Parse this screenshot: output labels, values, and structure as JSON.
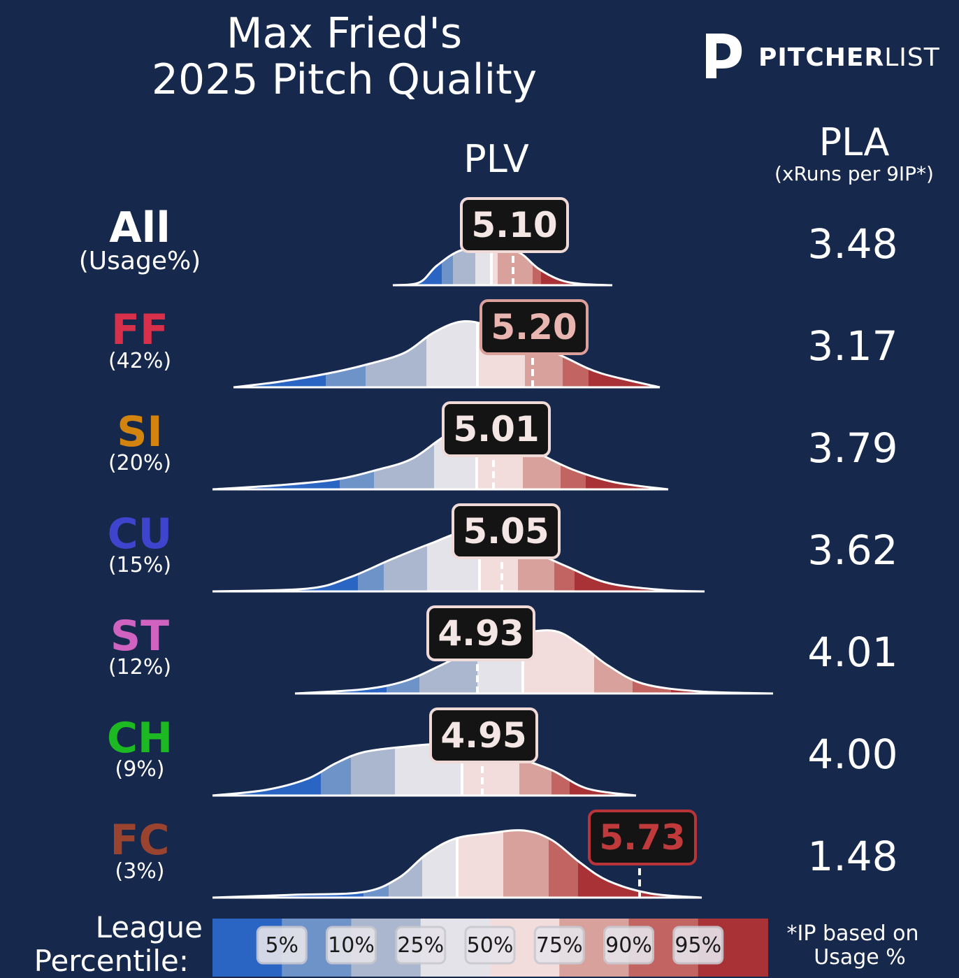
{
  "header": {
    "title_line1": "Max Fried's",
    "title_line2": "2025 Pitch Quality",
    "logo_bold": "PITCHER",
    "logo_thin": "LIST",
    "plv_header": "PLV",
    "pla_header": "PLA",
    "pla_subheader": "(xRuns per 9IP*)"
  },
  "colors": {
    "background": "#17284d",
    "percentile_bands": [
      "#2a65c4",
      "#6d93c8",
      "#aab7ce",
      "#e3e3e9",
      "#f2dcdc",
      "#d9a19c",
      "#c26462",
      "#a83236"
    ]
  },
  "rows": [
    {
      "pitch": "All",
      "usage": "(Usage%)",
      "plv": "5.10",
      "pla": "3.48",
      "color": "#ffffff",
      "label_style": "neutral"
    },
    {
      "pitch": "FF",
      "usage": "(42%)",
      "plv": "5.20",
      "pla": "3.17",
      "color": "#d8304b",
      "label_style": "pink"
    },
    {
      "pitch": "SI",
      "usage": "(20%)",
      "plv": "5.01",
      "pla": "3.79",
      "color": "#d2840f",
      "label_style": "neutral"
    },
    {
      "pitch": "CU",
      "usage": "(15%)",
      "plv": "5.05",
      "pla": "3.62",
      "color": "#3f44cf",
      "label_style": "neutral"
    },
    {
      "pitch": "ST",
      "usage": "(12%)",
      "plv": "4.93",
      "pla": "4.01",
      "color": "#d063c0",
      "label_style": "neutral"
    },
    {
      "pitch": "CH",
      "usage": "(9%)",
      "plv": "4.95",
      "pla": "4.00",
      "color": "#1cb922",
      "label_style": "neutral"
    },
    {
      "pitch": "FC",
      "usage": "(3%)",
      "plv": "5.73",
      "pla": "1.48",
      "color": "#9a4430",
      "label_style": "red"
    }
  ],
  "legend": {
    "label_line1": "League",
    "label_line2": "Percentile:",
    "percentiles": [
      "5%",
      "10%",
      "25%",
      "50%",
      "75%",
      "90%",
      "95%"
    ]
  },
  "footnote": {
    "line1": "*IP based on",
    "line2": "Usage %"
  },
  "chart_data": {
    "type": "density",
    "x_label": "PLV",
    "series": [
      {
        "name": "All",
        "plv": 5.1,
        "pla": 3.48
      },
      {
        "name": "FF",
        "plv": 5.2,
        "pla": 3.17
      },
      {
        "name": "SI",
        "plv": 5.01,
        "pla": 3.79
      },
      {
        "name": "CU",
        "plv": 5.05,
        "pla": 3.62
      },
      {
        "name": "ST",
        "plv": 4.93,
        "pla": 4.01
      },
      {
        "name": "CH",
        "plv": 4.95,
        "pla": 4.0
      },
      {
        "name": "FC",
        "plv": 5.73,
        "pla": 1.48
      }
    ],
    "percentile_levels": [
      5,
      10,
      25,
      50,
      75,
      90,
      95
    ]
  }
}
